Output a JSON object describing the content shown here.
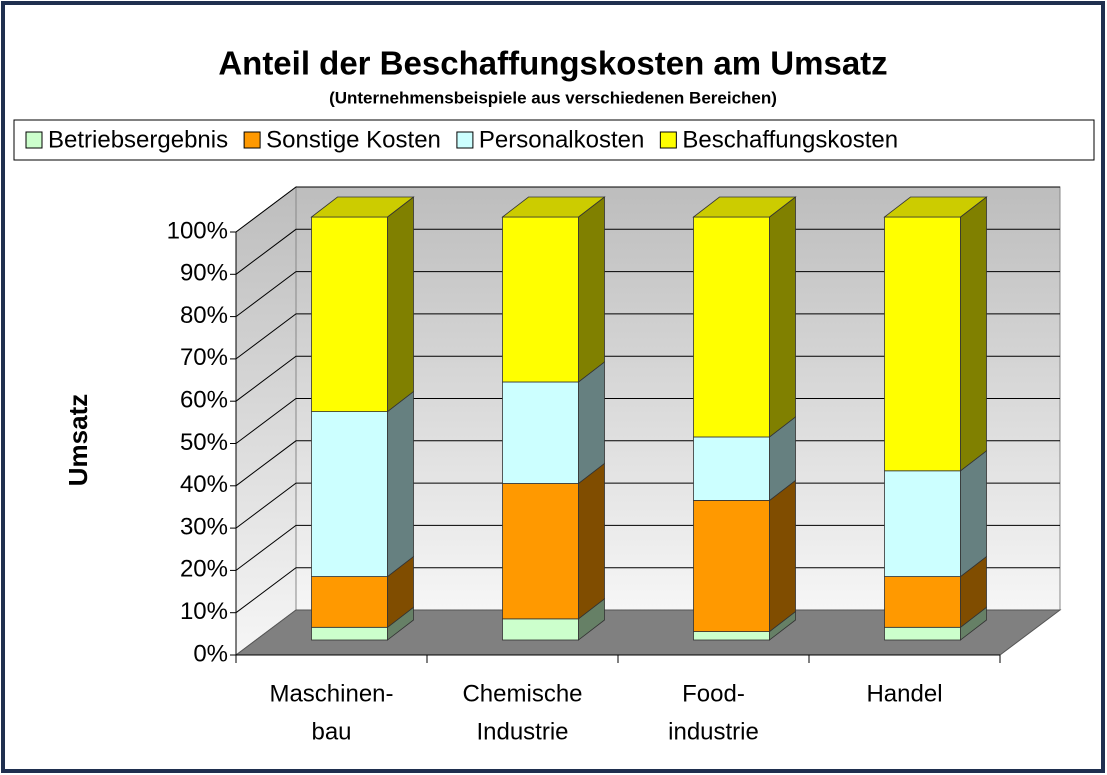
{
  "chart_data": {
    "type": "bar3d_stacked",
    "title": "Anteil der Beschaffungskosten am Umsatz",
    "subtitle": "(Unternehmensbeispiele aus verschiedenen Bereichen)",
    "y_label": "Umsatz",
    "legend": "top",
    "categories": [
      [
        "Maschinen-",
        "bau"
      ],
      [
        "Chemische",
        "Industrie"
      ],
      [
        "Food-",
        "industrie"
      ],
      [
        "Handel"
      ]
    ],
    "series": [
      {
        "name": "Betriebsergebnis",
        "color": "#ccffcc",
        "values": [
          3,
          5,
          2,
          3
        ]
      },
      {
        "name": "Sonstige Kosten",
        "color": "#ff9900",
        "values": [
          12,
          32,
          31,
          12
        ]
      },
      {
        "name": "Personalkosten",
        "color": "#ccffff",
        "values": [
          39,
          24,
          15,
          25
        ]
      },
      {
        "name": "Beschaffungskosten",
        "color": "#ffff00",
        "values": [
          46,
          39,
          52,
          60
        ]
      }
    ],
    "ylim": [
      0,
      100
    ],
    "yticks": [
      {
        "value": 0,
        "label": "0%"
      },
      {
        "value": 10,
        "label": "10%"
      },
      {
        "value": 20,
        "label": "20%"
      },
      {
        "value": 30,
        "label": "30%"
      },
      {
        "value": 40,
        "label": "40%"
      },
      {
        "value": 50,
        "label": "50%"
      },
      {
        "value": 60,
        "label": "60%"
      },
      {
        "value": 70,
        "label": "70%"
      },
      {
        "value": 80,
        "label": "80%"
      },
      {
        "value": 90,
        "label": "90%"
      },
      {
        "value": 100,
        "label": "100%"
      }
    ],
    "grid": true
  }
}
